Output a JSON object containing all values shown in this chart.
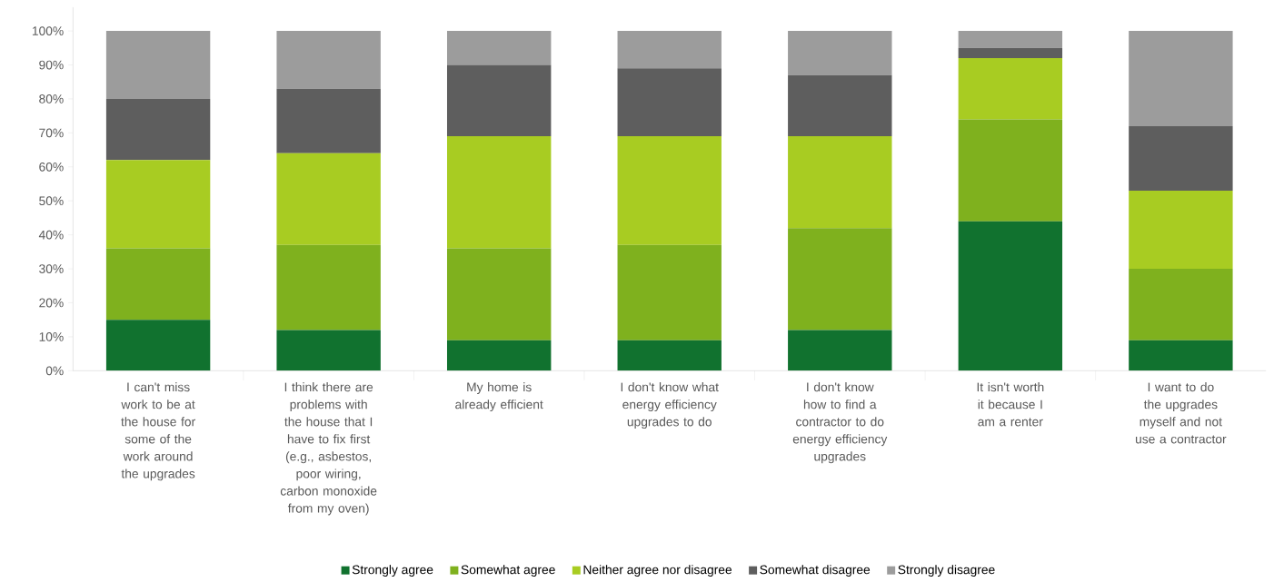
{
  "chart_data": {
    "type": "bar",
    "stacked": true,
    "categories": [
      "I can't miss work to be at the house for some of the work around the upgrades",
      "I think there are problems with the house that I have to fix first (e.g., asbestos, poor wiring, carbon monoxide from my oven)",
      "My home is already efficient",
      "I don't know what energy efficiency upgrades to do",
      "I don't know how to find a contractor to do energy efficiency upgrades",
      "It isn't worth it because I am a renter",
      "I want to do the upgrades myself and not use a contractor"
    ],
    "series": [
      {
        "name": "Strongly agree",
        "color": "#11722f",
        "values": [
          15,
          12,
          9,
          9,
          12,
          44,
          9
        ]
      },
      {
        "name": "Somewhat agree",
        "color": "#7fb11e",
        "values": [
          21,
          25,
          27,
          28,
          30,
          30,
          21
        ]
      },
      {
        "name": "Neither agree nor disagree",
        "color": "#a8cc22",
        "values": [
          26,
          27,
          33,
          32,
          27,
          18,
          23
        ]
      },
      {
        "name": "Somewhat disagree",
        "color": "#5e5e5e",
        "values": [
          18,
          19,
          21,
          20,
          18,
          3,
          19
        ]
      },
      {
        "name": "Strongly disagree",
        "color": "#9c9c9c",
        "values": [
          20,
          17,
          10,
          11,
          13,
          5,
          28
        ]
      }
    ],
    "ylim": [
      0,
      107
    ],
    "yticks": [
      {
        "value": 0,
        "label": "0%"
      },
      {
        "value": 10,
        "label": "10%"
      },
      {
        "value": 20,
        "label": "20%"
      },
      {
        "value": 30,
        "label": "30%"
      },
      {
        "value": 40,
        "label": "40%"
      },
      {
        "value": 50,
        "label": "50%"
      },
      {
        "value": 60,
        "label": "60%"
      },
      {
        "value": 70,
        "label": "70%"
      },
      {
        "value": 80,
        "label": "80%"
      },
      {
        "value": 90,
        "label": "90%"
      },
      {
        "value": 100,
        "label": "100%"
      }
    ],
    "legend": "bottom"
  }
}
